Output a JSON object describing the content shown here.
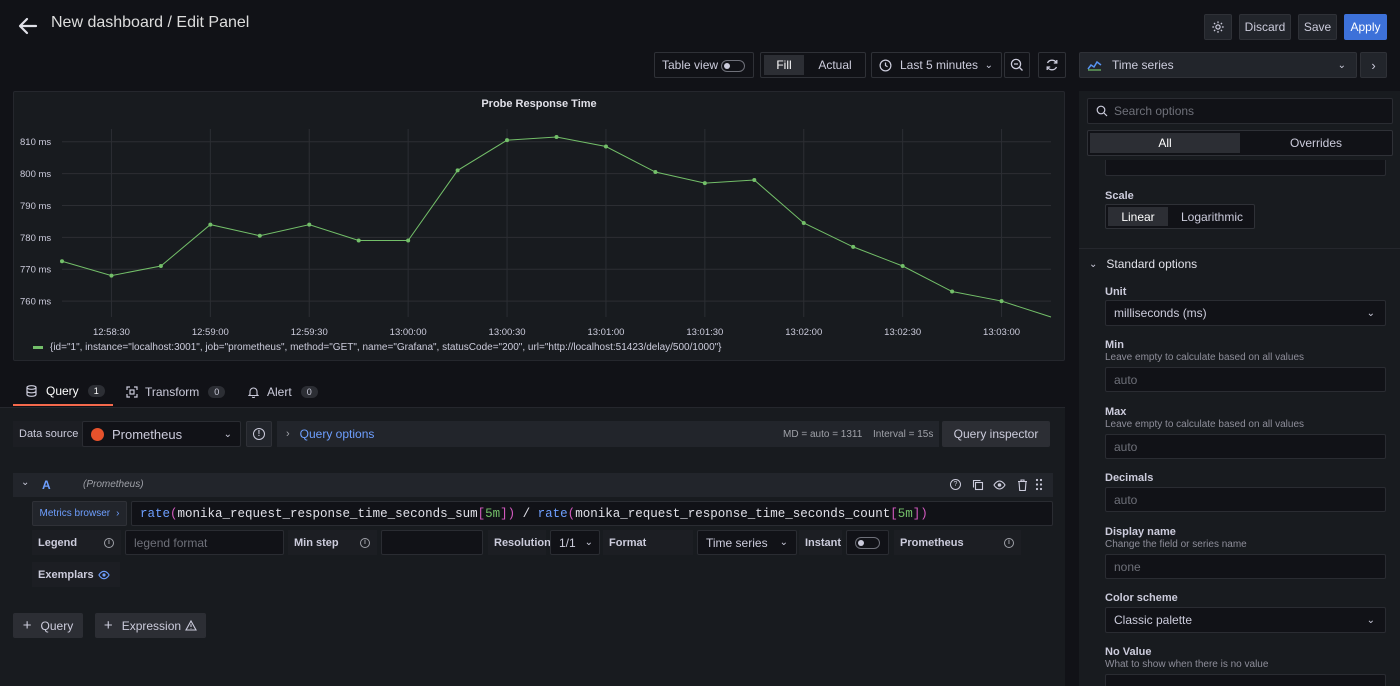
{
  "header": {
    "title": "New dashboard / Edit Panel",
    "discard_label": "Discard",
    "save_label": "Save",
    "apply_label": "Apply"
  },
  "toolbar": {
    "table_view_label": "Table view",
    "fill_label": "Fill",
    "actual_label": "Actual",
    "time_range": "Last 5 minutes"
  },
  "panel": {
    "title": "Probe Response Time",
    "legend": "{id=\"1\", instance=\"localhost:3001\", job=\"prometheus\", method=\"GET\", name=\"Grafana\", statusCode=\"200\", url=\"http://localhost:51423/delay/500/1000\"}"
  },
  "chart_data": {
    "type": "line",
    "title": "Probe Response Time",
    "x_tick_labels": [
      "12:58:30",
      "12:59:00",
      "12:59:30",
      "13:00:00",
      "13:00:30",
      "13:01:00",
      "13:01:30",
      "13:02:00",
      "13:02:30",
      "13:03:00"
    ],
    "y_tick_labels": [
      "760 ms",
      "770 ms",
      "780 ms",
      "790 ms",
      "800 ms",
      "810 ms"
    ],
    "ylim": [
      755,
      814
    ],
    "xlim": [
      "12:58:15",
      "13:03:15"
    ],
    "grid": true,
    "legend_position": "bottom-left",
    "color": "#73bf69",
    "series": [
      {
        "name": "{id=\"1\", instance=\"localhost:3001\", job=\"prometheus\", method=\"GET\", name=\"Grafana\", statusCode=\"200\", url=\"http://localhost:51423/delay/500/1000\"}",
        "x": [
          "12:58:15",
          "12:58:30",
          "12:58:45",
          "12:59:00",
          "12:59:15",
          "12:59:30",
          "12:59:45",
          "13:00:00",
          "13:00:15",
          "13:00:30",
          "13:00:45",
          "13:01:00",
          "13:01:15",
          "13:01:30",
          "13:01:45",
          "13:02:00",
          "13:02:15",
          "13:02:30",
          "13:02:45",
          "13:03:00",
          "13:03:15"
        ],
        "values": [
          772.5,
          768,
          771,
          784,
          780.5,
          784,
          779,
          779,
          801,
          810.5,
          811.5,
          808.5,
          800.5,
          797,
          798,
          784.5,
          777,
          771,
          763,
          760,
          755
        ]
      }
    ]
  },
  "query_tabs": {
    "query_label": "Query",
    "query_count": "1",
    "transform_label": "Transform",
    "transform_count": "0",
    "alert_label": "Alert",
    "alert_count": "0"
  },
  "query_bar": {
    "data_source_label": "Data source",
    "data_source": "Prometheus",
    "query_options_label": "Query options",
    "md_text": "MD = auto = 1311",
    "interval_text": "Interval = 15s",
    "query_inspector_label": "Query inspector"
  },
  "query_row": {
    "ref_id": "A",
    "source_hint": "(Prometheus)",
    "metrics_browser_label": "Metrics browser",
    "expr": {
      "fn1": "rate",
      "p1": "(",
      "metric1": "monika_request_response_time_seconds_sum",
      "b1": "[",
      "range1": "5m",
      "b1c": "])",
      "op": " / ",
      "fn2": "rate",
      "p2": "(",
      "metric2": "monika_request_response_time_seconds_count",
      "b2": "[",
      "range2": "5m",
      "b2c": "])"
    },
    "legend_label": "Legend",
    "legend_placeholder": "legend format",
    "min_step_label": "Min step",
    "resolution_label": "Resolution",
    "resolution_value": "1/1",
    "format_label": "Format",
    "format_value": "Time series",
    "instant_label": "Instant",
    "prometheus_label": "Prometheus",
    "exemplars_label": "Exemplars"
  },
  "add_buttons": {
    "query_label": "Query",
    "expression_label": "Expression"
  },
  "options": {
    "viz_label": "Time series",
    "search_placeholder": "Search options",
    "all_label": "All",
    "overrides_label": "Overrides",
    "scale_label": "Scale",
    "linear_label": "Linear",
    "logarithmic_label": "Logarithmic",
    "standard_options_label": "Standard options",
    "unit_label": "Unit",
    "unit_value": "milliseconds (ms)",
    "min_label": "Min",
    "min_desc": "Leave empty to calculate based on all values",
    "min_placeholder": "auto",
    "max_label": "Max",
    "max_desc": "Leave empty to calculate based on all values",
    "max_placeholder": "auto",
    "decimals_label": "Decimals",
    "decimals_placeholder": "auto",
    "display_name_label": "Display name",
    "display_name_desc": "Change the field or series name",
    "display_name_placeholder": "none",
    "color_scheme_label": "Color scheme",
    "color_scheme_value": "Classic palette",
    "no_value_label": "No Value",
    "no_value_desc": "What to show when there is no value"
  }
}
